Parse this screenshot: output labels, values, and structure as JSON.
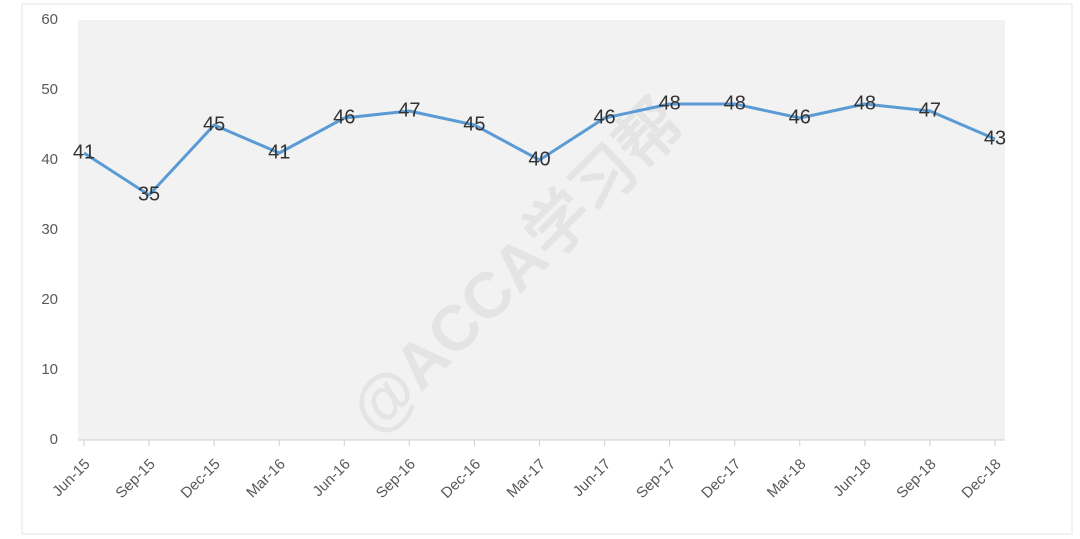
{
  "chart_data": {
    "type": "line",
    "categories": [
      "Jun-15",
      "Sep-15",
      "Dec-15",
      "Mar-16",
      "Jun-16",
      "Sep-16",
      "Dec-16",
      "Mar-17",
      "Jun-17",
      "Sep-17",
      "Dec-17",
      "Mar-18",
      "Jun-18",
      "Sep-18",
      "Dec-18"
    ],
    "values": [
      41,
      35,
      45,
      41,
      46,
      47,
      45,
      40,
      46,
      48,
      48,
      46,
      48,
      47,
      43
    ],
    "color": "#5b9bd5",
    "ylim": [
      0,
      60
    ],
    "yticks": [
      0,
      10,
      20,
      30,
      40,
      50,
      60
    ],
    "watermark": "@ACCA学习帮"
  }
}
